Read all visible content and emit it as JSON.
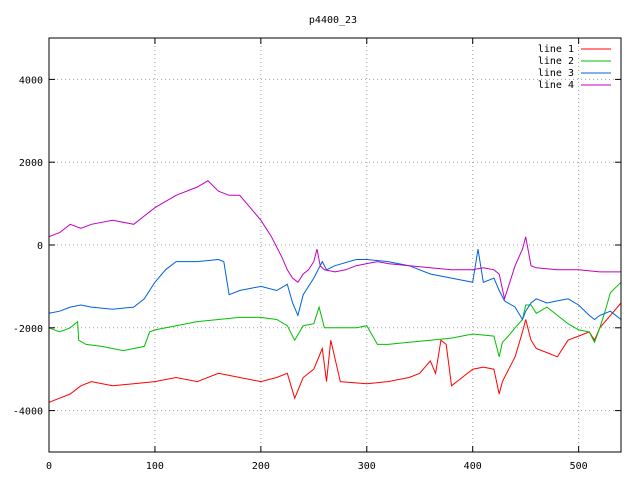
{
  "chart_data": {
    "type": "line",
    "title": "p4400_23",
    "xlabel": "",
    "ylabel": "",
    "xlim": [
      0,
      540
    ],
    "ylim": [
      -5000,
      5000
    ],
    "xticks": [
      0,
      100,
      200,
      300,
      400,
      500
    ],
    "yticks": [
      -4000,
      -2000,
      0,
      2000,
      4000
    ],
    "grid": true,
    "legend_position": "top-right",
    "series": [
      {
        "name": "line 1",
        "color": "#ff0000",
        "x": [
          0,
          10,
          20,
          30,
          40,
          60,
          80,
          100,
          120,
          140,
          160,
          180,
          200,
          215,
          225,
          232,
          240,
          250,
          258,
          262,
          266,
          275,
          300,
          320,
          340,
          350,
          360,
          365,
          370,
          375,
          380,
          390,
          400,
          410,
          420,
          425,
          428,
          432,
          440,
          447,
          450,
          455,
          460,
          470,
          480,
          490,
          500,
          510,
          515,
          520,
          530,
          540
        ],
        "y": [
          -3800,
          -3700,
          -3600,
          -3400,
          -3300,
          -3400,
          -3350,
          -3300,
          -3200,
          -3300,
          -3100,
          -3200,
          -3300,
          -3200,
          -3100,
          -3700,
          -3200,
          -3000,
          -2500,
          -3300,
          -2300,
          -3300,
          -3350,
          -3300,
          -3200,
          -3100,
          -2800,
          -3100,
          -2300,
          -2400,
          -3400,
          -3200,
          -3000,
          -2950,
          -3000,
          -3600,
          -3300,
          -3100,
          -2700,
          -2100,
          -1800,
          -2300,
          -2500,
          -2600,
          -2700,
          -2300,
          -2200,
          -2100,
          -2300,
          -2000,
          -1700,
          -1400
        ]
      },
      {
        "name": "line 2",
        "color": "#00c000",
        "x": [
          0,
          10,
          20,
          27,
          28,
          35,
          50,
          70,
          90,
          95,
          100,
          120,
          140,
          160,
          180,
          200,
          215,
          225,
          232,
          240,
          250,
          255,
          260,
          270,
          290,
          300,
          310,
          320,
          340,
          360,
          380,
          400,
          420,
          425,
          428,
          432,
          440,
          447,
          450,
          455,
          460,
          470,
          480,
          490,
          500,
          510,
          515,
          520,
          525,
          530,
          540
        ],
        "y": [
          -2000,
          -2100,
          -2000,
          -1850,
          -2300,
          -2400,
          -2450,
          -2550,
          -2450,
          -2100,
          -2050,
          -1950,
          -1850,
          -1800,
          -1750,
          -1750,
          -1800,
          -1950,
          -2300,
          -1950,
          -1900,
          -1500,
          -2000,
          -2000,
          -2000,
          -1950,
          -2400,
          -2400,
          -2350,
          -2300,
          -2250,
          -2150,
          -2200,
          -2700,
          -2350,
          -2250,
          -2000,
          -1800,
          -1450,
          -1450,
          -1650,
          -1500,
          -1700,
          -1900,
          -2050,
          -2100,
          -2350,
          -2000,
          -1600,
          -1150,
          -900
        ]
      },
      {
        "name": "line 3",
        "color": "#0060e0",
        "x": [
          0,
          10,
          20,
          30,
          40,
          60,
          80,
          90,
          95,
          100,
          110,
          120,
          140,
          160,
          165,
          170,
          180,
          200,
          215,
          225,
          230,
          235,
          240,
          250,
          258,
          262,
          270,
          290,
          300,
          320,
          340,
          360,
          380,
          400,
          405,
          410,
          420,
          425,
          430,
          440,
          447,
          450,
          455,
          460,
          470,
          480,
          490,
          500,
          510,
          515,
          520,
          530,
          540
        ],
        "y": [
          -1650,
          -1600,
          -1500,
          -1450,
          -1500,
          -1550,
          -1500,
          -1300,
          -1100,
          -900,
          -600,
          -400,
          -400,
          -350,
          -400,
          -1200,
          -1100,
          -1000,
          -1100,
          -950,
          -1400,
          -1700,
          -1200,
          -800,
          -400,
          -600,
          -500,
          -350,
          -350,
          -400,
          -500,
          -700,
          -800,
          -900,
          -100,
          -900,
          -800,
          -1100,
          -1350,
          -1500,
          -1800,
          -1600,
          -1400,
          -1300,
          -1400,
          -1350,
          -1300,
          -1450,
          -1700,
          -1800,
          -1700,
          -1600,
          -1800
        ]
      },
      {
        "name": "line 4",
        "color": "#c000c0",
        "x": [
          0,
          10,
          20,
          30,
          40,
          60,
          80,
          90,
          100,
          120,
          140,
          150,
          160,
          170,
          180,
          190,
          200,
          210,
          220,
          225,
          230,
          235,
          240,
          245,
          250,
          253,
          256,
          260,
          270,
          280,
          290,
          300,
          310,
          320,
          340,
          360,
          380,
          400,
          410,
          420,
          425,
          430,
          440,
          447,
          450,
          455,
          460,
          480,
          500,
          520,
          540
        ],
        "y": [
          200,
          300,
          500,
          400,
          500,
          600,
          500,
          700,
          900,
          1200,
          1400,
          1550,
          1300,
          1200,
          1200,
          900,
          600,
          200,
          -300,
          -600,
          -800,
          -900,
          -700,
          -600,
          -400,
          -100,
          -500,
          -600,
          -650,
          -600,
          -500,
          -450,
          -400,
          -450,
          -500,
          -550,
          -600,
          -600,
          -550,
          -600,
          -700,
          -1300,
          -500,
          -100,
          200,
          -500,
          -550,
          -600,
          -600,
          -650,
          -650
        ]
      }
    ]
  }
}
